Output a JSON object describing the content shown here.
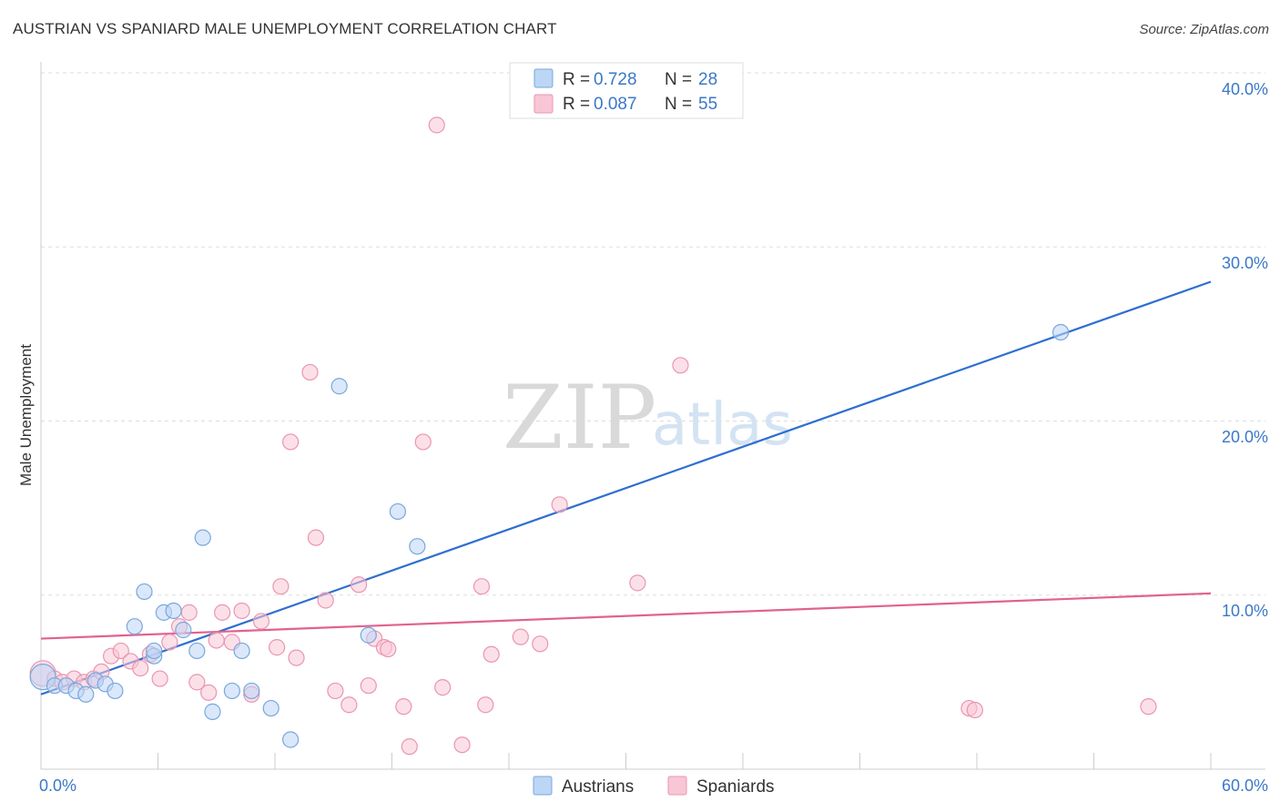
{
  "title": "AUSTRIAN VS SPANIARD MALE UNEMPLOYMENT CORRELATION CHART",
  "source": "Source: ZipAtlas.com",
  "watermark": {
    "zip": "ZIP",
    "atlas": "atlas"
  },
  "legend": {
    "r_label": "R =",
    "n_label": "N =",
    "rows": [
      {
        "r": "0.728",
        "n": "28"
      },
      {
        "r": "0.087",
        "n": "55"
      }
    ]
  },
  "colors": {
    "austrians_fill": "#bcd6f5",
    "austrians_stroke": "#7aa7dc",
    "austrians_line": "#2e6fd0",
    "spaniards_fill": "#f9c6d6",
    "spaniards_stroke": "#ea95b2",
    "spaniards_line": "#e0628f",
    "grid": "#dddddd",
    "tick_text": "#3a78c9"
  },
  "chart_data": {
    "type": "scatter",
    "title": "AUSTRIAN VS SPANIARD MALE UNEMPLOYMENT CORRELATION CHART",
    "xlabel": "",
    "ylabel": "Male Unemployment",
    "xlim": [
      0,
      60
    ],
    "ylim": [
      0,
      40
    ],
    "x_tick_labels": [
      "0.0%",
      "60.0%"
    ],
    "y_ticks": [
      10,
      20,
      30,
      40
    ],
    "y_tick_labels": [
      "10.0%",
      "20.0%",
      "30.0%",
      "40.0%"
    ],
    "legend_labels": [
      "Austrians",
      "Spaniards"
    ],
    "series": [
      {
        "name": "Austrians",
        "r": 0.728,
        "n": 28,
        "trend": {
          "x": [
            0,
            60
          ],
          "y": [
            4.3,
            28.0
          ]
        },
        "points": [
          [
            0.1,
            5.3
          ],
          [
            0.7,
            4.8
          ],
          [
            1.3,
            4.8
          ],
          [
            1.8,
            4.5
          ],
          [
            2.3,
            4.3
          ],
          [
            2.8,
            5.1
          ],
          [
            3.3,
            4.9
          ],
          [
            3.8,
            4.5
          ],
          [
            4.8,
            8.2
          ],
          [
            5.3,
            10.2
          ],
          [
            5.8,
            6.5
          ],
          [
            5.8,
            6.8
          ],
          [
            6.3,
            9.0
          ],
          [
            6.8,
            9.1
          ],
          [
            7.3,
            8.0
          ],
          [
            8.0,
            6.8
          ],
          [
            8.3,
            13.3
          ],
          [
            8.8,
            3.3
          ],
          [
            9.8,
            4.5
          ],
          [
            10.3,
            6.8
          ],
          [
            10.8,
            4.5
          ],
          [
            11.8,
            3.5
          ],
          [
            12.8,
            1.7
          ],
          [
            15.3,
            22.0
          ],
          [
            16.8,
            7.7
          ],
          [
            18.3,
            14.8
          ],
          [
            19.3,
            12.8
          ],
          [
            52.3,
            25.1
          ]
        ]
      },
      {
        "name": "Spaniards",
        "r": 0.087,
        "n": 55,
        "trend": {
          "x": [
            0,
            60
          ],
          "y": [
            7.5,
            10.1
          ]
        },
        "points": [
          [
            0.1,
            5.5
          ],
          [
            0.7,
            5.2
          ],
          [
            1.1,
            5.0
          ],
          [
            1.7,
            5.2
          ],
          [
            2.2,
            5.0
          ],
          [
            2.7,
            5.2
          ],
          [
            3.1,
            5.6
          ],
          [
            3.6,
            6.5
          ],
          [
            4.1,
            6.8
          ],
          [
            4.6,
            6.2
          ],
          [
            5.1,
            5.8
          ],
          [
            5.6,
            6.6
          ],
          [
            6.1,
            5.2
          ],
          [
            6.6,
            7.3
          ],
          [
            7.1,
            8.2
          ],
          [
            7.6,
            9.0
          ],
          [
            8.0,
            5.0
          ],
          [
            8.6,
            4.4
          ],
          [
            9.0,
            7.4
          ],
          [
            9.3,
            9.0
          ],
          [
            9.8,
            7.3
          ],
          [
            10.3,
            9.1
          ],
          [
            10.8,
            4.3
          ],
          [
            11.3,
            8.5
          ],
          [
            12.1,
            7.0
          ],
          [
            12.3,
            10.5
          ],
          [
            12.8,
            18.8
          ],
          [
            13.1,
            6.4
          ],
          [
            13.8,
            22.8
          ],
          [
            14.1,
            13.3
          ],
          [
            14.6,
            9.7
          ],
          [
            15.1,
            4.5
          ],
          [
            15.8,
            3.7
          ],
          [
            16.3,
            10.6
          ],
          [
            16.8,
            4.8
          ],
          [
            17.1,
            7.5
          ],
          [
            17.6,
            7.0
          ],
          [
            17.8,
            6.9
          ],
          [
            18.6,
            3.6
          ],
          [
            18.9,
            1.3
          ],
          [
            19.6,
            18.8
          ],
          [
            20.3,
            37.0
          ],
          [
            20.6,
            4.7
          ],
          [
            21.6,
            1.4
          ],
          [
            22.6,
            10.5
          ],
          [
            22.8,
            3.7
          ],
          [
            23.1,
            6.6
          ],
          [
            24.6,
            7.6
          ],
          [
            25.6,
            7.2
          ],
          [
            26.6,
            15.2
          ],
          [
            30.6,
            10.7
          ],
          [
            32.8,
            23.2
          ],
          [
            47.6,
            3.5
          ],
          [
            47.9,
            3.4
          ],
          [
            56.8,
            3.6
          ]
        ]
      }
    ]
  }
}
